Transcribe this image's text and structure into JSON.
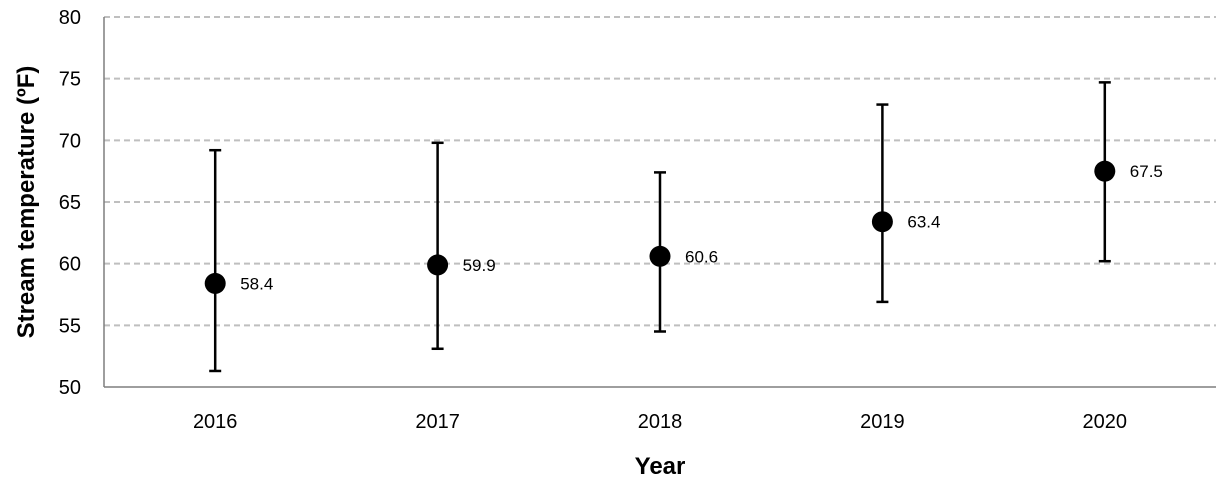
{
  "chart_data": {
    "type": "scatter",
    "title": "",
    "xlabel": "Year",
    "ylabel": "Stream temperature (ºF)",
    "ylim": [
      50,
      80
    ],
    "yticks": [
      "50",
      "55",
      "60",
      "65",
      "70",
      "75",
      "80"
    ],
    "grid": true,
    "grid_style": "dashed",
    "categories": [
      "2016",
      "2017",
      "2018",
      "2019",
      "2020"
    ],
    "series": [
      {
        "values": [
          58.4,
          59.9,
          60.6,
          63.4,
          67.5
        ],
        "error_low": [
          51.3,
          53.1,
          54.5,
          56.9,
          60.2
        ],
        "error_high": [
          69.2,
          69.8,
          67.4,
          72.9,
          74.7
        ],
        "data_labels": [
          "58.4",
          "59.9",
          "60.6",
          "63.4",
          "67.5"
        ],
        "marker": "circle",
        "color": "#000000"
      }
    ]
  },
  "colors": {
    "grid": "#bfbfbf",
    "axis": "#7f7f7f",
    "marker": "#000000",
    "error_bar": "#000000"
  }
}
